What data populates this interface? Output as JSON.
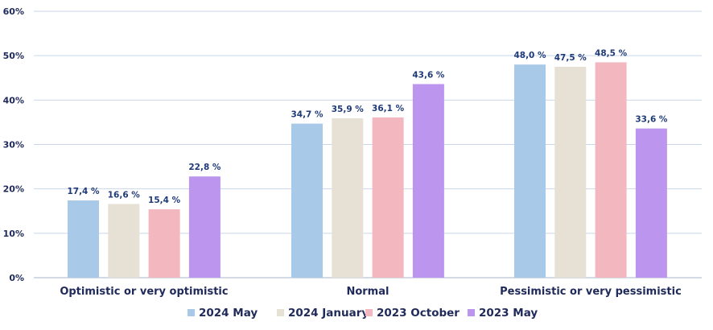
{
  "chart_data": {
    "type": "bar",
    "categories": [
      "Optimistic or very optimistic",
      "Normal",
      "Pessimistic or very pessimistic"
    ],
    "series": [
      {
        "name": "2024 May",
        "color": "#a9c9e8",
        "values": [
          17.4,
          34.7,
          48.0
        ],
        "labels": [
          "17,4 %",
          "34,7 %",
          "48,0 %"
        ]
      },
      {
        "name": "2024 January",
        "color": "#e6e1d4",
        "values": [
          16.6,
          35.9,
          47.5
        ],
        "labels": [
          "16,6 %",
          "35,9 %",
          "47,5 %"
        ]
      },
      {
        "name": "2023 October",
        "color": "#f2b7bf",
        "values": [
          15.4,
          36.1,
          48.5
        ],
        "labels": [
          "15,4 %",
          "36,1 %",
          "48,5 %"
        ]
      },
      {
        "name": "2023 May",
        "color": "#bb95ee",
        "values": [
          22.8,
          43.6,
          33.6
        ],
        "labels": [
          "22,8 %",
          "43,6 %",
          "33,6 %"
        ]
      }
    ],
    "yticks": [
      "0%",
      "10%",
      "20%",
      "30%",
      "40%",
      "50%",
      "60%"
    ],
    "ylim": [
      0,
      60
    ],
    "grid": true,
    "legend": "bottom",
    "title": "",
    "xlabel": "",
    "ylabel": ""
  }
}
